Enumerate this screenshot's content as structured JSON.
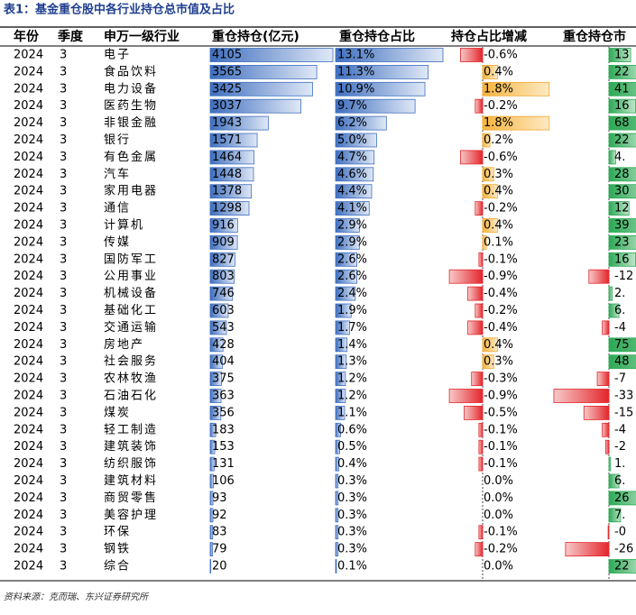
{
  "title": "表1：基金重仓股中各行业持仓总市值及占比",
  "table": {
    "columns": [
      "年份",
      "季度",
      "申万一级行业",
      "重仓持仓(亿元)",
      "重仓持仓占比",
      "持仓占比增减",
      "重仓持仓市"
    ],
    "rows": [
      [
        2024,
        3,
        "电子",
        4105,
        {
          "value": 13.1,
          "label": "13.1%"
        },
        {
          "value": -0.6,
          "label": "-0.6%"
        },
        13
      ],
      [
        2024,
        3,
        "食品饮料",
        3565,
        {
          "value": 11.3,
          "label": "11.3%"
        },
        {
          "value": 0.4,
          "label": "0.4%"
        },
        22
      ],
      [
        2024,
        3,
        "电力设备",
        3425,
        {
          "value": 10.9,
          "label": "10.9%"
        },
        {
          "value": 1.8,
          "label": "1.8%"
        },
        41
      ],
      [
        2024,
        3,
        "医药生物",
        3037,
        {
          "value": 9.7,
          "label": "9.7%"
        },
        {
          "value": -0.2,
          "label": "-0.2%"
        },
        16
      ],
      [
        2024,
        3,
        "非银金融",
        1943,
        {
          "value": 6.2,
          "label": "6.2%"
        },
        {
          "value": 1.8,
          "label": "1.8%"
        },
        68
      ],
      [
        2024,
        3,
        "银行",
        1571,
        {
          "value": 5.0,
          "label": "5.0%"
        },
        {
          "value": 0.2,
          "label": "0.2%"
        },
        22
      ],
      [
        2024,
        3,
        "有色金属",
        1464,
        {
          "value": 4.7,
          "label": "4.7%"
        },
        {
          "value": -0.6,
          "label": "-0.6%"
        },
        {
          "value": 4,
          "label": "4."
        }
      ],
      [
        2024,
        3,
        "汽车",
        1448,
        {
          "value": 4.6,
          "label": "4.6%"
        },
        {
          "value": 0.3,
          "label": "0.3%"
        },
        28
      ],
      [
        2024,
        3,
        "家用电器",
        1378,
        {
          "value": 4.4,
          "label": "4.4%"
        },
        {
          "value": 0.4,
          "label": "0.4%"
        },
        30
      ],
      [
        2024,
        3,
        "通信",
        1298,
        {
          "value": 4.1,
          "label": "4.1%"
        },
        {
          "value": -0.2,
          "label": "-0.2%"
        },
        12
      ],
      [
        2024,
        3,
        "计算机",
        916,
        {
          "value": 2.9,
          "label": "2.9%"
        },
        {
          "value": 0.4,
          "label": "0.4%"
        },
        39
      ],
      [
        2024,
        3,
        "传媒",
        909,
        {
          "value": 2.9,
          "label": "2.9%"
        },
        {
          "value": 0.1,
          "label": "0.1%"
        },
        23
      ],
      [
        2024,
        3,
        "国防军工",
        827,
        {
          "value": 2.6,
          "label": "2.6%"
        },
        {
          "value": -0.1,
          "label": "-0.1%"
        },
        16
      ],
      [
        2024,
        3,
        "公用事业",
        803,
        {
          "value": 2.6,
          "label": "2.6%"
        },
        {
          "value": -0.9,
          "label": "-0.9%"
        },
        -12
      ],
      [
        2024,
        3,
        "机械设备",
        746,
        {
          "value": 2.4,
          "label": "2.4%"
        },
        {
          "value": -0.4,
          "label": "-0.4%"
        },
        {
          "value": 2,
          "label": "2."
        }
      ],
      [
        2024,
        3,
        "基础化工",
        603,
        {
          "value": 1.9,
          "label": "1.9%"
        },
        {
          "value": -0.2,
          "label": "-0.2%"
        },
        {
          "value": 6,
          "label": "6."
        }
      ],
      [
        2024,
        3,
        "交通运输",
        543,
        {
          "value": 1.7,
          "label": "1.7%"
        },
        {
          "value": -0.4,
          "label": "-0.4%"
        },
        -4
      ],
      [
        2024,
        3,
        "房地产",
        428,
        {
          "value": 1.4,
          "label": "1.4%"
        },
        {
          "value": 0.4,
          "label": "0.4%"
        },
        75
      ],
      [
        2024,
        3,
        "社会服务",
        404,
        {
          "value": 1.3,
          "label": "1.3%"
        },
        {
          "value": 0.3,
          "label": "0.3%"
        },
        48
      ],
      [
        2024,
        3,
        "农林牧渔",
        375,
        {
          "value": 1.2,
          "label": "1.2%"
        },
        {
          "value": -0.3,
          "label": "-0.3%"
        },
        -7
      ],
      [
        2024,
        3,
        "石油石化",
        363,
        {
          "value": 1.2,
          "label": "1.2%"
        },
        {
          "value": -0.9,
          "label": "-0.9%"
        },
        -33
      ],
      [
        2024,
        3,
        "煤炭",
        356,
        {
          "value": 1.1,
          "label": "1.1%"
        },
        {
          "value": -0.5,
          "label": "-0.5%"
        },
        -15
      ],
      [
        2024,
        3,
        "轻工制造",
        183,
        {
          "value": 0.6,
          "label": "0.6%"
        },
        {
          "value": -0.1,
          "label": "-0.1%"
        },
        -4
      ],
      [
        2024,
        3,
        "建筑装饰",
        153,
        {
          "value": 0.5,
          "label": "0.5%"
        },
        {
          "value": -0.1,
          "label": "-0.1%"
        },
        -2
      ],
      [
        2024,
        3,
        "纺织服饰",
        131,
        {
          "value": 0.4,
          "label": "0.4%"
        },
        {
          "value": -0.1,
          "label": "-0.1%"
        },
        {
          "value": 1,
          "label": "1."
        }
      ],
      [
        2024,
        3,
        "建筑材料",
        106,
        {
          "value": 0.3,
          "label": "0.3%"
        },
        {
          "value": 0.0,
          "label": "0.0%"
        },
        {
          "value": 6,
          "label": "6."
        }
      ],
      [
        2024,
        3,
        "商贸零售",
        93,
        {
          "value": 0.3,
          "label": "0.3%"
        },
        {
          "value": 0.0,
          "label": "0.0%"
        },
        26
      ],
      [
        2024,
        3,
        "美容护理",
        92,
        {
          "value": 0.3,
          "label": "0.3%"
        },
        {
          "value": 0.0,
          "label": "0.0%"
        },
        {
          "value": 7,
          "label": "7."
        }
      ],
      [
        2024,
        3,
        "环保",
        83,
        {
          "value": 0.3,
          "label": "0.3%"
        },
        {
          "value": -0.1,
          "label": "-0.1%"
        },
        {
          "value": -0.5,
          "label": "-0"
        }
      ],
      [
        2024,
        3,
        "钢铁",
        79,
        {
          "value": 0.3,
          "label": "0.3%"
        },
        {
          "value": -0.2,
          "label": "-0.2%"
        },
        -26
      ],
      [
        2024,
        3,
        "综合",
        20,
        {
          "value": 0.1,
          "label": "0.1%"
        },
        {
          "value": 0.0,
          "label": "0.0%"
        },
        22
      ]
    ]
  },
  "source": "资料来源：克而瑞、东兴证券研究所"
}
